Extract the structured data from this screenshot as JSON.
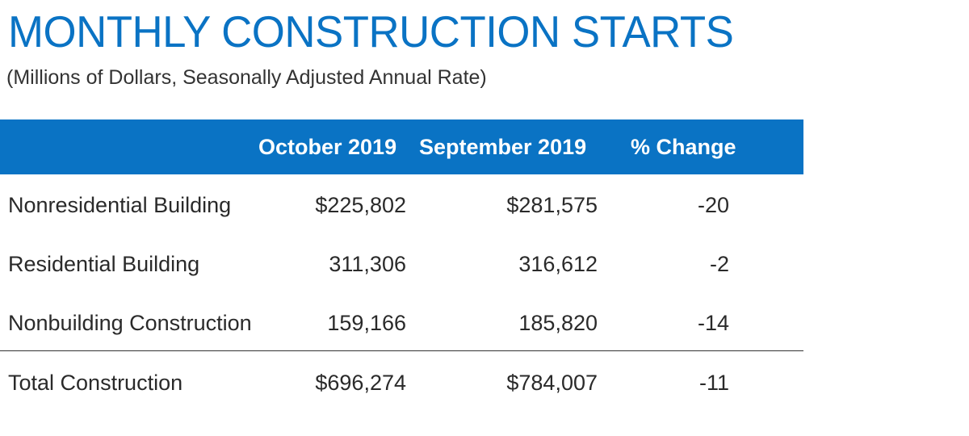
{
  "chart_data": {
    "type": "table",
    "title": "MONTHLY CONSTRUCTION STARTS",
    "subtitle": "(Millions of Dollars, Seasonally Adjusted Annual Rate)",
    "columns": [
      "",
      "October 2019",
      "September 2019",
      "% Change"
    ],
    "rows": [
      {
        "label": "Nonresidential Building",
        "october_2019": "$225,802",
        "september_2019": "$281,575",
        "pct_change": "-20"
      },
      {
        "label": "Residential Building",
        "october_2019": "311,306",
        "september_2019": "316,612",
        "pct_change": "-2"
      },
      {
        "label": "Nonbuilding Construction",
        "october_2019": "159,166",
        "september_2019": "185,820",
        "pct_change": "-14"
      }
    ],
    "total": {
      "label": "Total Construction",
      "october_2019": "$696,274",
      "september_2019": "$784,007",
      "pct_change": "-11"
    }
  },
  "colors": {
    "accent": "#0a73c4",
    "header_text": "#ffffff",
    "body_text": "#2a2a2a"
  }
}
